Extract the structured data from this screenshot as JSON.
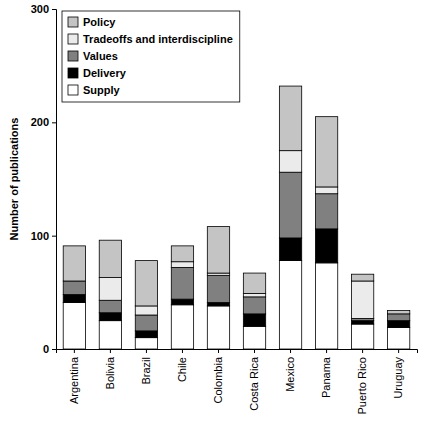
{
  "chart_data": {
    "type": "bar",
    "stacked": true,
    "legend": "upper left",
    "y_label": "Number of publications",
    "categories": [
      "Argentina",
      "Bolivia",
      "Brazil",
      "Chile",
      "Colombia",
      "Costa Rica",
      "Mexico",
      "Panama",
      "Puerto Rico",
      "Uruguay"
    ],
    "series": [
      {
        "name": "Supply",
        "color": "#ffffff",
        "values": [
          41,
          25,
          10,
          39,
          38,
          20,
          78,
          76,
          22,
          19
        ]
      },
      {
        "name": "Delivery",
        "color": "#000000",
        "values": [
          7,
          7,
          6,
          5,
          3,
          11,
          20,
          30,
          3,
          6
        ]
      },
      {
        "name": "Values",
        "color": "#808080",
        "values": [
          12,
          11,
          14,
          28,
          24,
          15,
          58,
          31,
          2,
          6
        ]
      },
      {
        "name": "Tradeoffs and interdiscipline",
        "color": "#ebebeb",
        "values": [
          0,
          20,
          8,
          5,
          2,
          3,
          19,
          6,
          33,
          0
        ]
      },
      {
        "name": "Policy",
        "color": "#c4c4c4",
        "values": [
          31,
          33,
          40,
          14,
          41,
          18,
          57,
          62,
          6,
          3
        ]
      }
    ],
    "ylim": [
      0,
      300
    ],
    "yticks": [
      0,
      100,
      200,
      300
    ],
    "grid": false
  }
}
